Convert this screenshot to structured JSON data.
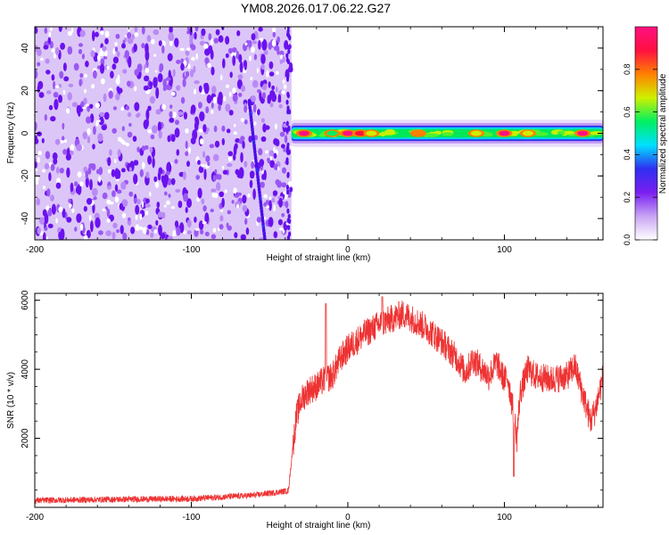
{
  "figure": {
    "title": "YM08.2026.017.06.22.G27"
  },
  "chart_data": [
    {
      "type": "heatmap",
      "name": "spectrogram",
      "xlabel": "Height of straight line (km)",
      "ylabel": "Frequency (Hz)",
      "xlim": [
        -200,
        163
      ],
      "ylim": [
        -50,
        50
      ],
      "xticks": [
        -200,
        -100,
        0,
        100
      ],
      "xtick_labels": [
        "-200",
        "-100",
        "0",
        "100"
      ],
      "yticks": [
        -40,
        -20,
        0,
        20,
        40
      ],
      "ytick_labels": [
        "-40",
        "-20",
        "0",
        "20",
        "40"
      ],
      "noise_region_x": [
        -200,
        -36
      ],
      "dispersion_line": {
        "x_at_top": -63,
        "x_at_bottom": -53,
        "y_top": 15,
        "y_bottom": -50
      },
      "signal_band": {
        "x_start": -36,
        "x_end": 163,
        "center_hz": 0,
        "half_width_hz": 2
      },
      "signal_peaks": [
        {
          "x": -28,
          "value": 0.95
        },
        {
          "x": -10,
          "value": 0.6
        },
        {
          "x": 0,
          "value": 0.95
        },
        {
          "x": 8,
          "value": 0.9
        },
        {
          "x": 15,
          "value": 0.7
        },
        {
          "x": 45,
          "value": 0.75
        },
        {
          "x": 82,
          "value": 0.65
        },
        {
          "x": 100,
          "value": 0.95
        },
        {
          "x": 115,
          "value": 0.7
        },
        {
          "x": 150,
          "value": 0.95
        }
      ],
      "colorbar": {
        "label": "Normalized spectral amplitude",
        "range": [
          0,
          1
        ],
        "ticks": [
          0.0,
          0.2,
          0.4,
          0.6,
          0.8
        ],
        "tick_labels": [
          "0.0",
          "0.2",
          "0.4",
          "0.6",
          "0.8"
        ],
        "colors": [
          "#ffffff",
          "#c8a4f4",
          "#7a1ff0",
          "#2f2ff0",
          "#00e0ff",
          "#00f060",
          "#d0f000",
          "#ff8000",
          "#ff1040",
          "#ff1080"
        ]
      }
    },
    {
      "type": "line",
      "name": "snr",
      "xlabel": "Height of straight line (km)",
      "ylabel": "SNR (10 * v/v)",
      "xlim": [
        -200,
        163
      ],
      "ylim": [
        0,
        6200
      ],
      "xticks": [
        -200,
        -100,
        0,
        100
      ],
      "xtick_labels": [
        "-200",
        "-100",
        "0",
        "100"
      ],
      "yticks": [
        2000,
        4000,
        6000
      ],
      "ytick_labels": [
        "2000",
        "4000",
        "6000"
      ],
      "color": "#ee3333",
      "series": [
        {
          "name": "SNR",
          "x": [
            -200,
            -150,
            -100,
            -60,
            -38,
            -35,
            -33,
            -30,
            -25,
            -20,
            -15,
            -10,
            -5,
            0,
            10,
            20,
            30,
            35,
            40,
            50,
            60,
            70,
            75,
            80,
            90,
            95,
            100,
            102,
            105,
            108,
            110,
            115,
            120,
            130,
            140,
            145,
            150,
            155,
            158,
            163
          ],
          "y": [
            200,
            230,
            250,
            350,
            480,
            1800,
            2600,
            3100,
            3400,
            3500,
            3700,
            3800,
            4300,
            4600,
            5000,
            5300,
            5500,
            5600,
            5500,
            5200,
            4800,
            4300,
            3900,
            4300,
            3800,
            4200,
            3700,
            3800,
            3000,
            2000,
            3300,
            4000,
            3800,
            3700,
            3800,
            4100,
            3300,
            2500,
            2800,
            3800
          ]
        }
      ],
      "peaks": [
        {
          "x": -14,
          "y": 5900
        },
        {
          "x": 22,
          "y": 6100
        },
        {
          "x": 106,
          "y": 900
        }
      ]
    }
  ]
}
